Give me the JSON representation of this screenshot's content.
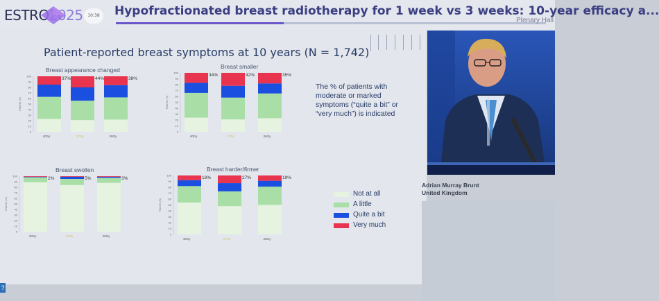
{
  "header": {
    "logo_text": "ESTRO",
    "logo_year": "2025",
    "clock": "10:38",
    "session_title": "Hypofractionated breast radiotherapy for 1 week vs 3 weeks: 10-year efficacy a...",
    "progress": 0.39,
    "location": "Plenary Hall"
  },
  "slide": {
    "title": "Patient-reported breast symptoms at 10 years (N = 1,742)",
    "note": "The % of patients with moderate or marked symptoms (“quite a bit” or “very much”) is indicated",
    "side_link": "?",
    "legend": [
      {
        "label": "Not at all",
        "color": "#e6f3e1"
      },
      {
        "label": "A little",
        "color": "#a9dfa6"
      },
      {
        "label": "Quite a bit",
        "color": "#1a4fe0"
      },
      {
        "label": "Very much",
        "color": "#e8344f"
      }
    ]
  },
  "chart_data": [
    {
      "type": "bar",
      "stacked": true,
      "title": "Breast  appearance changed",
      "ylabel": "Patients (%)",
      "ylim": [
        0,
        100
      ],
      "yticks": [
        "100",
        "90",
        "80",
        "70",
        "60",
        "50",
        "40",
        "30",
        "20",
        "10",
        "0"
      ],
      "categories": [
        "40Gy",
        "27Gy",
        "26Gy"
      ],
      "series": [
        {
          "name": "Not at all",
          "values": [
            23,
            21,
            22
          ]
        },
        {
          "name": "A little",
          "values": [
            40,
            35,
            40
          ]
        },
        {
          "name": "Quite a bit",
          "values": [
            22,
            24,
            22
          ]
        },
        {
          "name": "Very much",
          "values": [
            15,
            20,
            16
          ]
        }
      ],
      "labels": [
        "37%",
        "44%",
        "38%"
      ]
    },
    {
      "type": "bar",
      "stacked": true,
      "title": "Breast smaller",
      "ylabel": "Patients (%)",
      "ylim": [
        0,
        100
      ],
      "yticks": [
        "100",
        "90",
        "80",
        "70",
        "60",
        "50",
        "40",
        "30",
        "20",
        "10",
        "0"
      ],
      "categories": [
        "40Gy",
        "27Gy",
        "26Gy"
      ],
      "series": [
        {
          "name": "Not at all",
          "values": [
            24,
            21,
            23
          ]
        },
        {
          "name": "A little",
          "values": [
            42,
            37,
            42
          ]
        },
        {
          "name": "Quite a bit",
          "values": [
            17,
            20,
            17
          ]
        },
        {
          "name": "Very much",
          "values": [
            17,
            22,
            18
          ]
        }
      ],
      "labels": [
        "34%",
        "42%",
        "35%"
      ]
    },
    {
      "type": "bar",
      "stacked": true,
      "title": "Breast swollen",
      "ylabel": "Patients (%)",
      "ylim": [
        0,
        100
      ],
      "yticks": [
        "100",
        "90",
        "80",
        "70",
        "60",
        "50",
        "40",
        "30",
        "20",
        "10",
        "0"
      ],
      "categories": [
        "40Gy",
        "27Gy",
        "26Gy"
      ],
      "series": [
        {
          "name": "Not at all",
          "values": [
            89,
            84,
            88
          ]
        },
        {
          "name": "A little",
          "values": [
            9,
            11,
            9
          ]
        },
        {
          "name": "Quite a bit",
          "values": [
            1,
            4,
            2
          ]
        },
        {
          "name": "Very much",
          "values": [
            1,
            1,
            1
          ]
        }
      ],
      "labels": [
        "2%",
        "5%",
        "3%"
      ]
    },
    {
      "type": "bar",
      "stacked": true,
      "title": "Breast harder/firmer",
      "ylabel": "Patients (%)",
      "ylim": [
        0,
        100
      ],
      "yticks": [
        "100",
        "90",
        "80",
        "70",
        "60",
        "50",
        "40",
        "30",
        "20",
        "10",
        "0"
      ],
      "categories": [
        "40Gy",
        "27Gy",
        "26Gy"
      ],
      "series": [
        {
          "name": "Not at all",
          "values": [
            54,
            48,
            50
          ]
        },
        {
          "name": "A little",
          "values": [
            28,
            25,
            31
          ]
        },
        {
          "name": "Quite a bit",
          "values": [
            10,
            14,
            10
          ]
        },
        {
          "name": "Very much",
          "values": [
            8,
            13,
            9
          ]
        }
      ],
      "labels": [
        "18%",
        "27%",
        "19%"
      ]
    }
  ],
  "speaker": {
    "name": "Adrian Murray Brunt",
    "country": "United Kingdom"
  }
}
